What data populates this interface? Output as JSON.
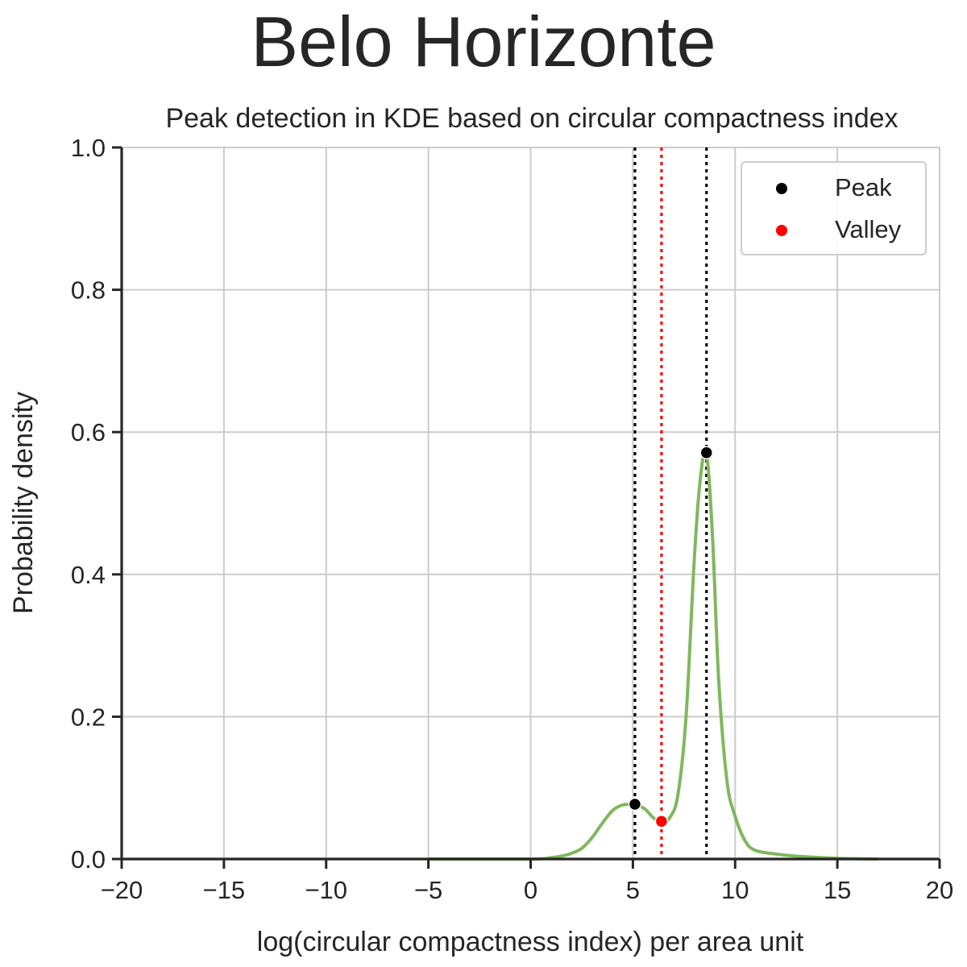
{
  "chart_data": {
    "type": "line",
    "suptitle": "Belo Horizonte",
    "title": "Peak detection in KDE based on circular compactness index",
    "xlabel": "log(circular compactness index) per area unit",
    "ylabel": "Probability density",
    "xlim": [
      -20,
      20
    ],
    "ylim": [
      0,
      1.0
    ],
    "xticks": [
      -20,
      -15,
      -10,
      -5,
      0,
      5,
      10,
      15,
      20
    ],
    "xtick_labels": [
      "−20",
      "−15",
      "−10",
      "−5",
      "0",
      "5",
      "10",
      "15",
      "20"
    ],
    "yticks": [
      0,
      0.2,
      0.4,
      0.6,
      0.8,
      1.0
    ],
    "ytick_labels": [
      "0.0",
      "0.2",
      "0.4",
      "0.6",
      "0.8",
      "1.0"
    ],
    "grid": true,
    "legend_position": "top-right",
    "legend": [
      {
        "label": "Peak",
        "color": "#000000"
      },
      {
        "label": "Valley",
        "color": "#ff0000"
      }
    ],
    "series": [
      {
        "color": "#7fb85d",
        "x": [
          -5,
          0,
          1,
          1.5,
          2,
          2.5,
          3,
          3.5,
          4,
          4.5,
          5,
          5.2,
          5.6,
          6,
          6.4,
          6.8,
          7.2,
          7.6,
          8,
          8.3,
          8.6,
          8.9,
          9.2,
          9.6,
          10,
          10.5,
          11,
          12,
          13,
          15,
          17
        ],
        "values": [
          0.0,
          0.0,
          0.002,
          0.004,
          0.008,
          0.015,
          0.03,
          0.05,
          0.068,
          0.076,
          0.077,
          0.076,
          0.07,
          0.058,
          0.052,
          0.058,
          0.09,
          0.2,
          0.42,
          0.535,
          0.57,
          0.45,
          0.25,
          0.11,
          0.06,
          0.025,
          0.012,
          0.007,
          0.004,
          0.001,
          0.0
        ]
      }
    ],
    "peaks": [
      {
        "x": 5.1,
        "y": 0.077
      },
      {
        "x": 8.6,
        "y": 0.571
      }
    ],
    "valleys": [
      {
        "x": 6.4,
        "y": 0.053
      }
    ],
    "vlines": [
      {
        "x": 5.1,
        "color": "#000000",
        "style": "dotted"
      },
      {
        "x": 6.4,
        "color": "#ff0000",
        "style": "dotted"
      },
      {
        "x": 8.6,
        "color": "#000000",
        "style": "dotted"
      }
    ]
  }
}
